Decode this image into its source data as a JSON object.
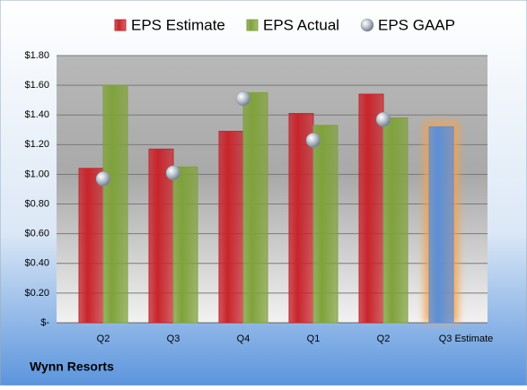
{
  "chart_data": {
    "type": "bar",
    "subtitle": "Wynn Resorts",
    "categories": [
      "Q2",
      "Q3",
      "Q4",
      "Q1",
      "Q2",
      "Q3 Estimate"
    ],
    "series": [
      {
        "name": "EPS Estimate",
        "color": "#c8242b",
        "values": [
          1.04,
          1.17,
          1.29,
          1.41,
          1.54,
          1.32
        ],
        "colors": [
          "#c8242b",
          "#c8242b",
          "#c8242b",
          "#c8242b",
          "#c8242b",
          "#5b8fd8"
        ]
      },
      {
        "name": "EPS Actual",
        "color": "#7fa23a",
        "values": [
          1.6,
          1.05,
          1.55,
          1.33,
          1.38,
          null
        ]
      },
      {
        "name": "EPS GAAP",
        "color": "#b8c2cc",
        "marker": "circle",
        "values": [
          0.97,
          1.01,
          1.51,
          1.23,
          1.37,
          null
        ]
      }
    ],
    "ylim": [
      0,
      1.8
    ],
    "yticks": [
      {
        "value": 0,
        "label": "$-"
      },
      {
        "value": 0.2,
        "label": "$0.20"
      },
      {
        "value": 0.4,
        "label": "$0.40"
      },
      {
        "value": 0.6,
        "label": "$0.60"
      },
      {
        "value": 0.8,
        "label": "$0.80"
      },
      {
        "value": 1.0,
        "label": "$1.00"
      },
      {
        "value": 1.2,
        "label": "$1.20"
      },
      {
        "value": 1.4,
        "label": "$1.40"
      },
      {
        "value": 1.6,
        "label": "$1.60"
      },
      {
        "value": 1.8,
        "label": "$1.80"
      }
    ],
    "grid": true,
    "legend": "top"
  }
}
